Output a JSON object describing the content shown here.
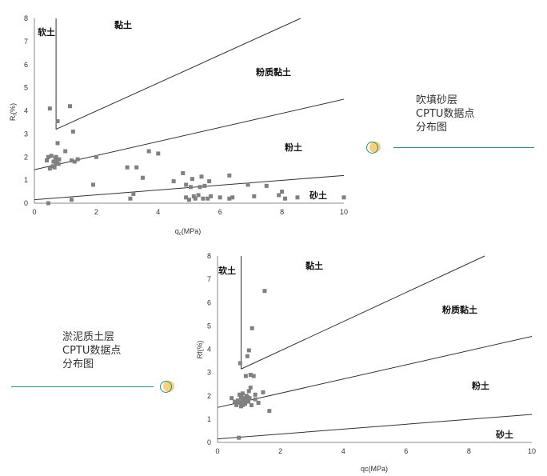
{
  "captions": {
    "top_right": [
      "吹填砂层",
      "CPTU数据点",
      "分布图"
    ],
    "bottom_left": [
      "淤泥质土层",
      "CPTU数据点",
      "分布图"
    ]
  },
  "colors": {
    "marker": "#808080",
    "boundary_line": "#333333",
    "accent_line": "#2a8a8a",
    "accent_circle": "#f6d27a"
  },
  "chart_data": [
    {
      "type": "scatter",
      "xlabel": "q_c(MPa)",
      "ylabel": "R_f(%)",
      "xlim": [
        0,
        10
      ],
      "ylim": [
        0,
        8
      ],
      "x_ticks": [
        "0",
        "2",
        "4",
        "6",
        "8",
        "10"
      ],
      "y_ticks": [
        "0",
        "1",
        "2",
        "3",
        "4",
        "5",
        "6",
        "7",
        "8"
      ],
      "zone_labels": [
        "软土",
        "黏土",
        "粉质黏土",
        "粉土",
        "砂土"
      ],
      "boundaries": [
        {
          "x": [
            0.7,
            0.7
          ],
          "y": [
            8,
            3.2
          ]
        },
        {
          "x": [
            0.7,
            8.6
          ],
          "y": [
            3.2,
            8
          ]
        },
        {
          "x": [
            0,
            10
          ],
          "y": [
            1.45,
            4.5
          ]
        },
        {
          "x": [
            0,
            10
          ],
          "y": [
            0.15,
            1.2
          ]
        }
      ],
      "points": [
        [
          0.4,
          1.85
        ],
        [
          0.45,
          2.0
        ],
        [
          0.5,
          4.1
        ],
        [
          0.5,
          1.5
        ],
        [
          0.55,
          2.05
        ],
        [
          0.6,
          1.6
        ],
        [
          0.62,
          1.8
        ],
        [
          0.65,
          1.55
        ],
        [
          0.68,
          1.95
        ],
        [
          0.7,
          1.7
        ],
        [
          0.7,
          2.0
        ],
        [
          0.72,
          1.85
        ],
        [
          0.75,
          3.55
        ],
        [
          0.75,
          2.6
        ],
        [
          0.78,
          1.7
        ],
        [
          0.8,
          1.9
        ],
        [
          1.0,
          2.25
        ],
        [
          1.15,
          4.2
        ],
        [
          1.2,
          1.85
        ],
        [
          1.25,
          3.1
        ],
        [
          1.3,
          1.8
        ],
        [
          1.4,
          1.9
        ],
        [
          2.0,
          2.0
        ],
        [
          1.9,
          0.8
        ],
        [
          1.2,
          0.15
        ],
        [
          3.0,
          1.55
        ],
        [
          3.1,
          0.2
        ],
        [
          3.2,
          0.4
        ],
        [
          3.3,
          1.55
        ],
        [
          3.5,
          1.1
        ],
        [
          3.7,
          2.25
        ],
        [
          4.0,
          2.15
        ],
        [
          4.5,
          0.95
        ],
        [
          4.8,
          1.3
        ],
        [
          4.9,
          0.8
        ],
        [
          4.9,
          0.25
        ],
        [
          5.0,
          0.15
        ],
        [
          5.05,
          0.7
        ],
        [
          5.1,
          1.05
        ],
        [
          5.15,
          0.3
        ],
        [
          5.2,
          0.2
        ],
        [
          5.3,
          0.35
        ],
        [
          5.35,
          0.7
        ],
        [
          5.4,
          1.15
        ],
        [
          5.45,
          0.2
        ],
        [
          5.5,
          0.75
        ],
        [
          5.6,
          0.2
        ],
        [
          5.65,
          0.95
        ],
        [
          5.7,
          0.3
        ],
        [
          6.0,
          0.25
        ],
        [
          6.3,
          0.2
        ],
        [
          6.3,
          1.2
        ],
        [
          6.4,
          0.25
        ],
        [
          6.9,
          0.8
        ],
        [
          7.1,
          0.3
        ],
        [
          7.5,
          0.75
        ],
        [
          7.9,
          0.35
        ],
        [
          8.0,
          0.5
        ],
        [
          8.1,
          0.2
        ],
        [
          8.5,
          0.25
        ],
        [
          10.0,
          0.25
        ],
        [
          0.45,
          0.0
        ]
      ]
    },
    {
      "type": "scatter",
      "xlabel": "qc(MPa)",
      "ylabel": "Rf(%)",
      "xlim": [
        0,
        10
      ],
      "ylim": [
        0,
        8
      ],
      "x_ticks": [
        "0",
        "2",
        "4",
        "6",
        "8",
        "10"
      ],
      "y_ticks": [
        "0",
        "1",
        "2",
        "3",
        "4",
        "5",
        "6",
        "7",
        "8"
      ],
      "zone_labels": [
        "软土",
        "黏土",
        "粉质黏土",
        "粉土",
        "砂土"
      ],
      "boundaries": [
        {
          "x": [
            0.75,
            0.75
          ],
          "y": [
            8,
            3.15
          ]
        },
        {
          "x": [
            0.75,
            8.5
          ],
          "y": [
            3.15,
            8
          ]
        },
        {
          "x": [
            0,
            10
          ],
          "y": [
            1.5,
            4.55
          ]
        },
        {
          "x": [
            0,
            10
          ],
          "y": [
            0.15,
            1.2
          ]
        }
      ],
      "points": [
        [
          0.65,
          1.8
        ],
        [
          0.7,
          1.7
        ],
        [
          0.7,
          2.05
        ],
        [
          0.72,
          3.4
        ],
        [
          0.75,
          1.55
        ],
        [
          0.75,
          1.95
        ],
        [
          0.78,
          1.85
        ],
        [
          0.8,
          1.6
        ],
        [
          0.8,
          2.1
        ],
        [
          0.82,
          1.75
        ],
        [
          0.85,
          1.9
        ],
        [
          0.88,
          1.65
        ],
        [
          0.9,
          2.85
        ],
        [
          0.9,
          1.8
        ],
        [
          0.92,
          2.0
        ],
        [
          0.95,
          1.95
        ],
        [
          0.95,
          3.7
        ],
        [
          0.98,
          1.75
        ],
        [
          1.0,
          3.95
        ],
        [
          1.0,
          2.2
        ],
        [
          1.02,
          1.9
        ],
        [
          1.05,
          2.35
        ],
        [
          1.05,
          2.9
        ],
        [
          1.08,
          1.6
        ],
        [
          1.1,
          4.9
        ],
        [
          1.15,
          2.85
        ],
        [
          1.2,
          1.85
        ],
        [
          1.3,
          1.7
        ],
        [
          1.45,
          2.15
        ],
        [
          1.5,
          6.5
        ],
        [
          1.65,
          1.35
        ],
        [
          0.45,
          1.9
        ],
        [
          0.55,
          1.75
        ],
        [
          0.6,
          1.6
        ],
        [
          0.68,
          0.2
        ],
        [
          1.2,
          2.05
        ]
      ]
    }
  ]
}
